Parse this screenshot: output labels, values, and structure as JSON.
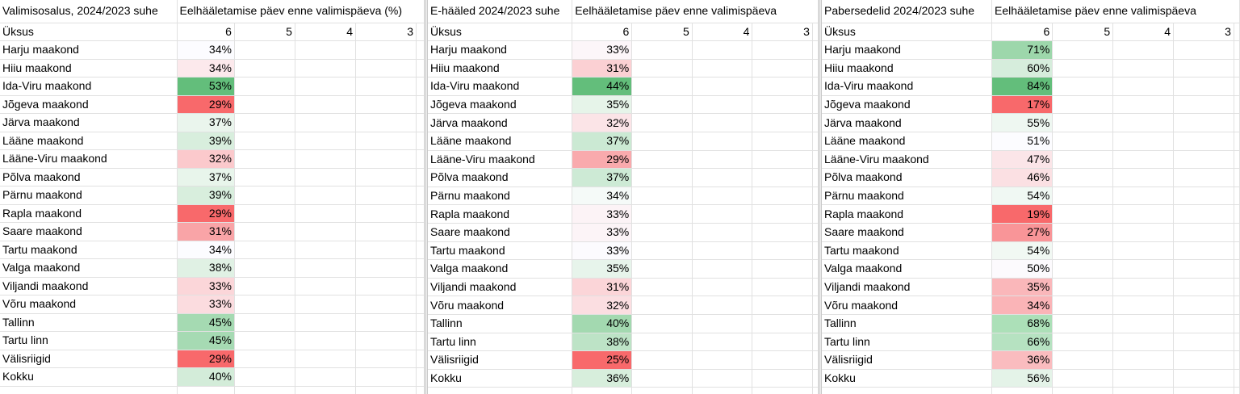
{
  "panes": [
    {
      "title": "Valimisosalus, 2024/2023 suhe",
      "subtitle": "Eelhääletamise päev enne valimispäeva (%)",
      "unit_label": "Üksus",
      "cols": [
        "6",
        "5",
        "4",
        "3"
      ],
      "rows": [
        {
          "label": "Harju maakond",
          "value": "34%",
          "color": "#fcfcff"
        },
        {
          "label": "Hiiu maakond",
          "value": "34%",
          "color": "#fce9ec"
        },
        {
          "label": "Ida-Viru maakond",
          "value": "53%",
          "color": "#63be7b"
        },
        {
          "label": "Jõgeva maakond",
          "value": "29%",
          "color": "#f8696b"
        },
        {
          "label": "Järva maakond",
          "value": "37%",
          "color": "#eaf5ed"
        },
        {
          "label": "Lääne maakond",
          "value": "39%",
          "color": "#d8eedd"
        },
        {
          "label": "Lääne-Viru maakond",
          "value": "32%",
          "color": "#fbc9cc"
        },
        {
          "label": "Põlva maakond",
          "value": "37%",
          "color": "#e8f5eb"
        },
        {
          "label": "Pärnu maakond",
          "value": "39%",
          "color": "#d8eedd"
        },
        {
          "label": "Rapla maakond",
          "value": "29%",
          "color": "#f8696b"
        },
        {
          "label": "Saare maakond",
          "value": "31%",
          "color": "#f9a4a7"
        },
        {
          "label": "Tartu maakond",
          "value": "34%",
          "color": "#fcfcff"
        },
        {
          "label": "Valga maakond",
          "value": "38%",
          "color": "#e0f1e4"
        },
        {
          "label": "Viljandi maakond",
          "value": "33%",
          "color": "#fbd6d9"
        },
        {
          "label": "Võru maakond",
          "value": "33%",
          "color": "#fbdcdf"
        },
        {
          "label": "Tallinn",
          "value": "45%",
          "color": "#a5dab2"
        },
        {
          "label": "Tartu linn",
          "value": "45%",
          "color": "#a6dab3"
        },
        {
          "label": "Välisriigid",
          "value": "29%",
          "color": "#f8696b"
        },
        {
          "label": "Kokku",
          "value": "40%",
          "color": "#d3ecd9"
        }
      ]
    },
    {
      "title": "E-hääled 2024/2023 suhe",
      "subtitle": "Eelhääletamise päev enne valimispäeva",
      "unit_label": "Üksus",
      "cols": [
        "6",
        "5",
        "4",
        "3"
      ],
      "rows": [
        {
          "label": "Harju maakond",
          "value": "33%",
          "color": "#fcf6f9"
        },
        {
          "label": "Hiiu maakond",
          "value": "31%",
          "color": "#fbd0d3"
        },
        {
          "label": "Ida-Viru maakond",
          "value": "44%",
          "color": "#63be7b"
        },
        {
          "label": "Jõgeva maakond",
          "value": "35%",
          "color": "#e6f4e9"
        },
        {
          "label": "Järva maakond",
          "value": "32%",
          "color": "#fbe4e7"
        },
        {
          "label": "Lääne maakond",
          "value": "37%",
          "color": "#cbe9d3"
        },
        {
          "label": "Lääne-Viru maakond",
          "value": "29%",
          "color": "#f9aaad"
        },
        {
          "label": "Põlva maakond",
          "value": "37%",
          "color": "#cdead5"
        },
        {
          "label": "Pärnu maakond",
          "value": "34%",
          "color": "#f5faf8"
        },
        {
          "label": "Rapla maakond",
          "value": "33%",
          "color": "#fcf3f6"
        },
        {
          "label": "Saare maakond",
          "value": "33%",
          "color": "#fcf4f7"
        },
        {
          "label": "Tartu maakond",
          "value": "33%",
          "color": "#fcfbfe"
        },
        {
          "label": "Valga maakond",
          "value": "35%",
          "color": "#e7f4eb"
        },
        {
          "label": "Viljandi maakond",
          "value": "31%",
          "color": "#fbd5d8"
        },
        {
          "label": "Võru maakond",
          "value": "32%",
          "color": "#fbdee1"
        },
        {
          "label": "Tallinn",
          "value": "40%",
          "color": "#a3d9b0"
        },
        {
          "label": "Tartu linn",
          "value": "38%",
          "color": "#bde3c6"
        },
        {
          "label": "Välisriigid",
          "value": "25%",
          "color": "#f8696b"
        },
        {
          "label": "Kokku",
          "value": "36%",
          "color": "#d7eedc"
        }
      ]
    },
    {
      "title": "Pabersedelid 2024/2023 suhe",
      "subtitle": "Eelhääletamise päev enne valimispäeva",
      "unit_label": "Üksus",
      "cols": [
        "6",
        "5",
        "4",
        "3"
      ],
      "rows": [
        {
          "label": "Harju maakond",
          "value": "71%",
          "color": "#9dd7ab"
        },
        {
          "label": "Hiiu maakond",
          "value": "60%",
          "color": "#d6eddc"
        },
        {
          "label": "Ida-Viru maakond",
          "value": "84%",
          "color": "#63be7b"
        },
        {
          "label": "Jõgeva maakond",
          "value": "17%",
          "color": "#f8696b"
        },
        {
          "label": "Järva maakond",
          "value": "55%",
          "color": "#eef7f1"
        },
        {
          "label": "Lääne maakond",
          "value": "51%",
          "color": "#fcfcff"
        },
        {
          "label": "Lääne-Viru maakond",
          "value": "47%",
          "color": "#fbe5e8"
        },
        {
          "label": "Põlva maakond",
          "value": "46%",
          "color": "#fbe0e3"
        },
        {
          "label": "Pärnu maakond",
          "value": "54%",
          "color": "#f0f8f3"
        },
        {
          "label": "Rapla maakond",
          "value": "19%",
          "color": "#f8696b"
        },
        {
          "label": "Saare maakond",
          "value": "27%",
          "color": "#f99598"
        },
        {
          "label": "Tartu maakond",
          "value": "54%",
          "color": "#f1f8f3"
        },
        {
          "label": "Valga maakond",
          "value": "50%",
          "color": "#fcfafd"
        },
        {
          "label": "Viljandi maakond",
          "value": "35%",
          "color": "#fab7ba"
        },
        {
          "label": "Võru maakond",
          "value": "34%",
          "color": "#fab4b7"
        },
        {
          "label": "Tallinn",
          "value": "68%",
          "color": "#ace0b8"
        },
        {
          "label": "Tartu linn",
          "value": "66%",
          "color": "#b6e2c1"
        },
        {
          "label": "Välisriigid",
          "value": "36%",
          "color": "#fabcbf"
        },
        {
          "label": "Kokku",
          "value": "56%",
          "color": "#e4f3e8"
        }
      ]
    }
  ]
}
